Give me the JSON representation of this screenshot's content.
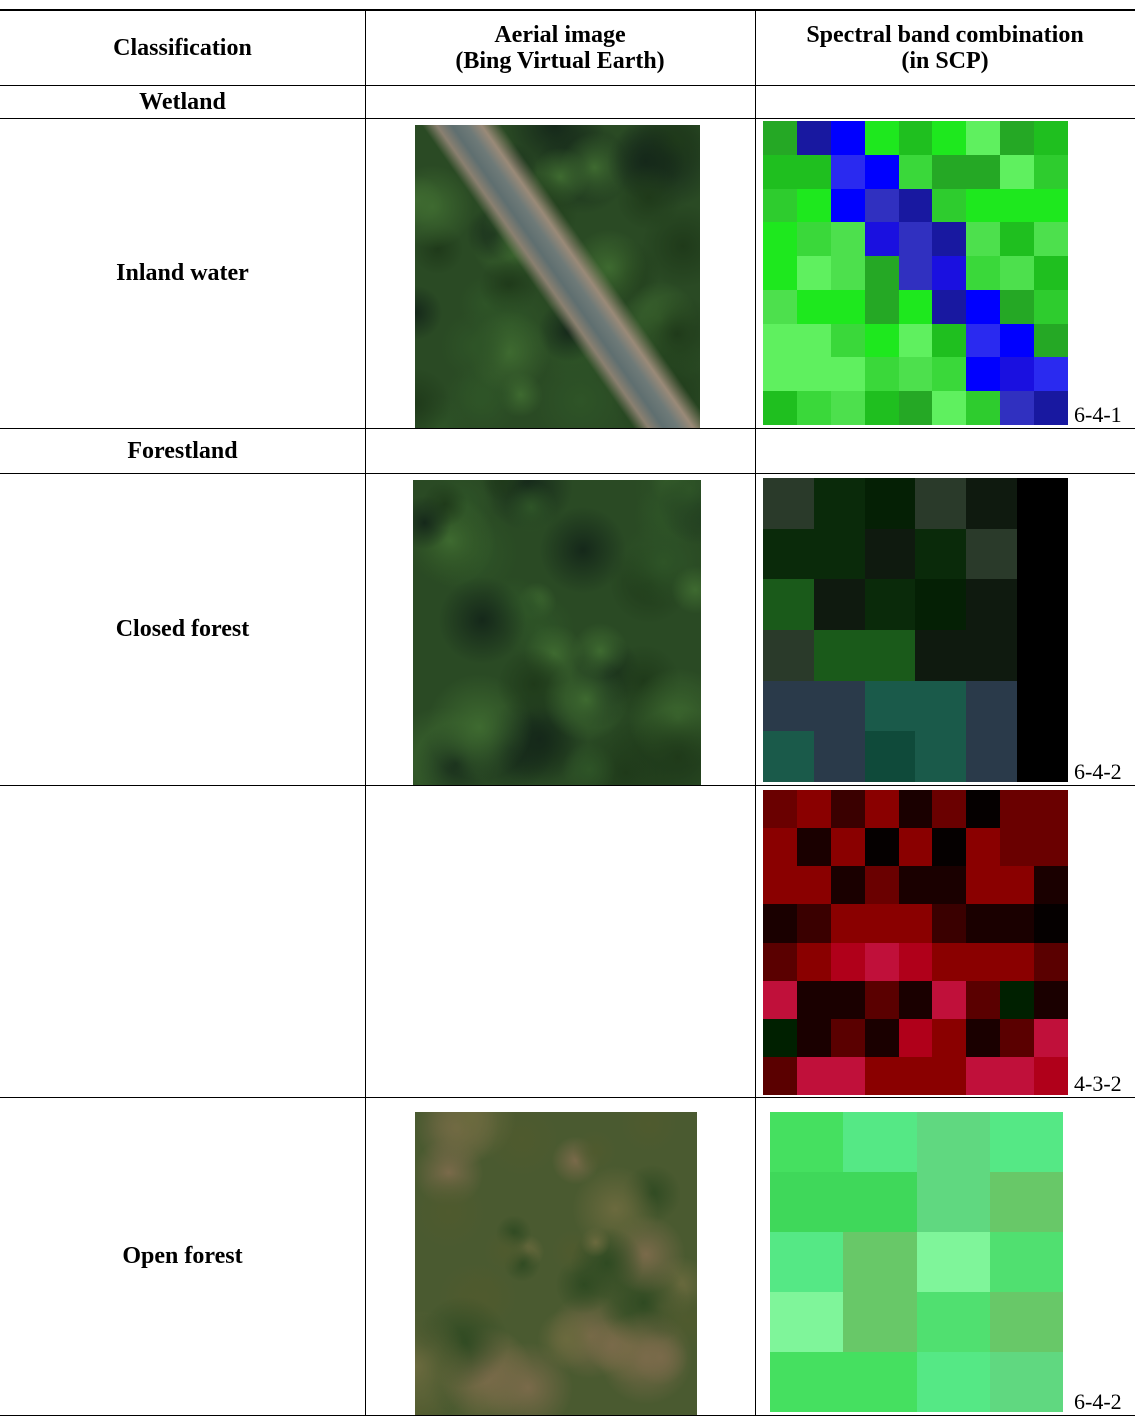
{
  "table": {
    "header": [
      [
        "Classification"
      ],
      [
        "Aerial image",
        "(Bing Virtual Earth)"
      ],
      [
        "Spectral band combination",
        "(in SCP)"
      ]
    ],
    "rows": [
      {
        "classification": "Wetland"
      },
      {
        "classification": "Inland water",
        "band_combination": "6-4-1"
      },
      {
        "classification": "Forestland"
      },
      {
        "classification": "Closed forest",
        "band_combination": "6-4-2"
      },
      {
        "band_combination": "4-3-2"
      },
      {
        "classification": "Open forest",
        "band_combination": "6-4-2"
      }
    ]
  }
}
